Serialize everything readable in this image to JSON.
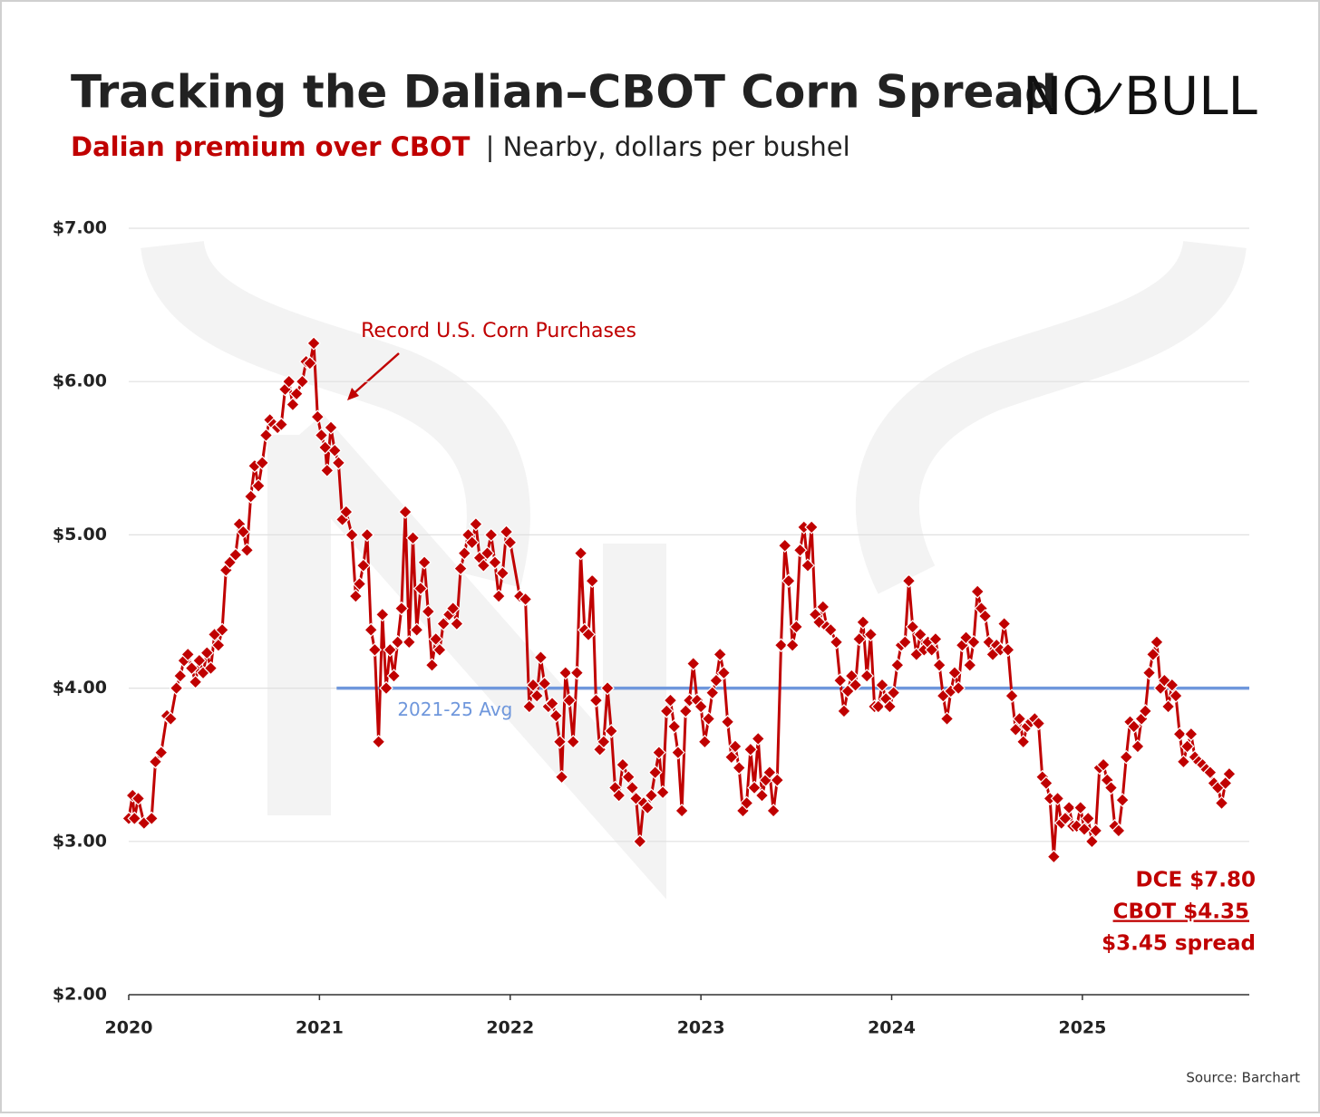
{
  "chart_data": {
    "type": "line",
    "title": "Tracking the Dalian–CBOT Corn Spread",
    "subtitle": {
      "highlight": "Dalian premium over CBOT",
      "rest": "| Nearby, dollars per bushel"
    },
    "logo": [
      "NO",
      "BULL"
    ],
    "source": "Source: Barchart",
    "xlim": [
      2020,
      2025.875
    ],
    "xticks": [
      2020,
      2021,
      2022,
      2023,
      2024,
      2025
    ],
    "ylim": [
      2,
      7
    ],
    "yticks": [
      {
        "value": 2,
        "label": "$2.00"
      },
      {
        "value": 3,
        "label": "$3.00"
      },
      {
        "value": 4,
        "label": "$4.00"
      },
      {
        "value": 5,
        "label": "$5.00"
      },
      {
        "value": 6,
        "label": "$6.00"
      },
      {
        "value": 7,
        "label": "$7.00"
      }
    ],
    "grid": true,
    "series": [
      {
        "name": "Dalian premium over CBOT",
        "color": "#c00000",
        "x": [
          2020.0,
          2020.02,
          2020.03,
          2020.05,
          2020.08,
          2020.12,
          2020.14,
          2020.17,
          2020.2,
          2020.22,
          2020.25,
          2020.27,
          2020.29,
          2020.31,
          2020.33,
          2020.35,
          2020.37,
          2020.39,
          2020.41,
          2020.43,
          2020.45,
          2020.47,
          2020.49,
          2020.51,
          2020.53,
          2020.56,
          2020.58,
          2020.6,
          2020.62,
          2020.64,
          2020.66,
          2020.68,
          2020.7,
          2020.72,
          2020.74,
          2020.76,
          2020.78,
          2020.8,
          2020.82,
          2020.84,
          2020.86,
          2020.88,
          2020.91,
          2020.93,
          2020.95,
          2020.97,
          2020.99,
          2021.01,
          2021.03,
          2021.04,
          2021.06,
          2021.08,
          2021.1,
          2021.12,
          2021.14,
          2021.17,
          2021.19,
          2021.21,
          2021.23,
          2021.25,
          2021.27,
          2021.29,
          2021.31,
          2021.33,
          2021.35,
          2021.37,
          2021.39,
          2021.41,
          2021.43,
          2021.45,
          2021.47,
          2021.49,
          2021.51,
          2021.53,
          2021.55,
          2021.57,
          2021.59,
          2021.61,
          2021.63,
          2021.65,
          2021.68,
          2021.7,
          2021.72,
          2021.74,
          2021.76,
          2021.78,
          2021.8,
          2021.82,
          2021.84,
          2021.86,
          2021.88,
          2021.9,
          2021.92,
          2021.94,
          2021.96,
          2021.98,
          2022.0,
          2022.05,
          2022.08,
          2022.1,
          2022.12,
          2022.14,
          2022.16,
          2022.18,
          2022.2,
          2022.22,
          2022.24,
          2022.26,
          2022.27,
          2022.29,
          2022.31,
          2022.33,
          2022.35,
          2022.37,
          2022.39,
          2022.41,
          2022.43,
          2022.45,
          2022.47,
          2022.49,
          2022.51,
          2022.53,
          2022.55,
          2022.57,
          2022.59,
          2022.62,
          2022.64,
          2022.66,
          2022.68,
          2022.7,
          2022.72,
          2022.74,
          2022.76,
          2022.78,
          2022.8,
          2022.82,
          2022.84,
          2022.86,
          2022.88,
          2022.9,
          2022.92,
          2022.94,
          2022.96,
          2022.98,
          2023.0,
          2023.02,
          2023.04,
          2023.06,
          2023.08,
          2023.1,
          2023.12,
          2023.14,
          2023.16,
          2023.18,
          2023.2,
          2023.22,
          2023.24,
          2023.26,
          2023.28,
          2023.3,
          2023.32,
          2023.34,
          2023.36,
          2023.38,
          2023.4,
          2023.42,
          2023.44,
          2023.46,
          2023.48,
          2023.5,
          2023.52,
          2023.54,
          2023.56,
          2023.58,
          2023.6,
          2023.62,
          2023.64,
          2023.66,
          2023.68,
          2023.71,
          2023.73,
          2023.75,
          2023.77,
          2023.79,
          2023.81,
          2023.83,
          2023.85,
          2023.87,
          2023.89,
          2023.91,
          2023.93,
          2023.95,
          2023.97,
          2023.99,
          2024.01,
          2024.03,
          2024.05,
          2024.07,
          2024.09,
          2024.11,
          2024.13,
          2024.15,
          2024.17,
          2024.19,
          2024.21,
          2024.23,
          2024.25,
          2024.27,
          2024.29,
          2024.31,
          2024.33,
          2024.35,
          2024.37,
          2024.39,
          2024.41,
          2024.43,
          2024.45,
          2024.47,
          2024.49,
          2024.51,
          2024.53,
          2024.55,
          2024.57,
          2024.59,
          2024.61,
          2024.63,
          2024.65,
          2024.67,
          2024.69,
          2024.71,
          2024.73,
          2024.75,
          2024.77,
          2024.79,
          2024.81,
          2024.83,
          2024.85,
          2024.87,
          2024.89,
          2024.91,
          2024.93,
          2024.95,
          2024.97,
          2024.99,
          2025.01,
          2025.03,
          2025.05,
          2025.07,
          2025.09,
          2025.11,
          2025.13,
          2025.15,
          2025.17,
          2025.19,
          2025.21,
          2025.23,
          2025.25,
          2025.27,
          2025.29,
          2025.31,
          2025.33,
          2025.35,
          2025.37,
          2025.39,
          2025.41,
          2025.43,
          2025.45,
          2025.47,
          2025.49,
          2025.51,
          2025.53,
          2025.55,
          2025.57,
          2025.59,
          2025.61,
          2025.63,
          2025.65,
          2025.67,
          2025.69,
          2025.71,
          2025.73,
          2025.75,
          2025.77
        ],
        "values": [
          3.15,
          3.3,
          3.15,
          3.28,
          3.12,
          3.15,
          3.52,
          3.58,
          3.82,
          3.8,
          4.0,
          4.08,
          4.18,
          4.22,
          4.13,
          4.04,
          4.18,
          4.1,
          4.23,
          4.13,
          4.35,
          4.28,
          4.38,
          4.77,
          4.82,
          4.87,
          5.07,
          5.02,
          4.9,
          5.25,
          5.45,
          5.32,
          5.47,
          5.65,
          5.75,
          5.72,
          5.7,
          5.72,
          5.95,
          6.0,
          5.85,
          5.92,
          6.0,
          6.13,
          6.12,
          6.25,
          5.77,
          5.65,
          5.57,
          5.42,
          5.7,
          5.55,
          5.47,
          5.1,
          5.15,
          5.0,
          4.6,
          4.68,
          4.8,
          5.0,
          4.38,
          4.25,
          3.65,
          4.48,
          4.0,
          4.25,
          4.08,
          4.3,
          4.52,
          5.15,
          4.3,
          4.98,
          4.38,
          4.65,
          4.82,
          4.5,
          4.15,
          4.32,
          4.25,
          4.42,
          4.48,
          4.52,
          4.42,
          4.78,
          4.88,
          5.0,
          4.95,
          5.07,
          4.85,
          4.8,
          4.88,
          5.0,
          4.82,
          4.6,
          4.75,
          5.02,
          4.95,
          4.6,
          4.58,
          3.88,
          4.02,
          3.95,
          4.2,
          4.03,
          3.88,
          3.9,
          3.82,
          3.65,
          3.42,
          4.1,
          3.92,
          3.65,
          4.1,
          4.88,
          4.38,
          4.35,
          4.7,
          3.92,
          3.6,
          3.65,
          4.0,
          3.72,
          3.35,
          3.3,
          3.5,
          3.42,
          3.35,
          3.28,
          3.0,
          3.25,
          3.22,
          3.3,
          3.45,
          3.58,
          3.32,
          3.85,
          3.92,
          3.75,
          3.58,
          3.2,
          3.85,
          3.92,
          4.16,
          3.92,
          3.88,
          3.65,
          3.8,
          3.97,
          4.05,
          4.22,
          4.1,
          3.78,
          3.55,
          3.62,
          3.48,
          3.2,
          3.25,
          3.6,
          3.35,
          3.67,
          3.3,
          3.4,
          3.45,
          3.2,
          3.4,
          4.28,
          4.93,
          4.7,
          4.28,
          4.4,
          4.9,
          5.05,
          4.8,
          5.05,
          4.48,
          4.43,
          4.53,
          4.4,
          4.38,
          4.3,
          4.05,
          3.85,
          3.98,
          4.08,
          4.02,
          4.32,
          4.43,
          4.08,
          4.35,
          3.88,
          3.88,
          4.02,
          3.93,
          3.88,
          3.97,
          4.15,
          4.28,
          4.3,
          4.7,
          4.4,
          4.22,
          4.35,
          4.25,
          4.3,
          4.25,
          4.32,
          4.15,
          3.95,
          3.8,
          3.98,
          4.1,
          4.0,
          4.28,
          4.33,
          4.15,
          4.3,
          4.63,
          4.52,
          4.47,
          4.3,
          4.22,
          4.28,
          4.25,
          4.42,
          4.25,
          3.95,
          3.73,
          3.8,
          3.65,
          3.75,
          3.78,
          3.8,
          3.77,
          3.42,
          3.38,
          3.28,
          2.9,
          3.28,
          3.12,
          3.15,
          3.22,
          3.1,
          3.1,
          3.22,
          3.08,
          3.15,
          3.0,
          3.07,
          3.48,
          3.5,
          3.4,
          3.35,
          3.1,
          3.07,
          3.27,
          3.55,
          3.78,
          3.75,
          3.62,
          3.8,
          3.85,
          4.1,
          4.22,
          4.3,
          4.0,
          4.05,
          3.88,
          4.02,
          3.95,
          3.7,
          3.52,
          3.62,
          3.7,
          3.55,
          3.52,
          3.5,
          3.47,
          3.45,
          3.38,
          3.35,
          3.25,
          3.38,
          3.44
        ]
      }
    ],
    "avg_line": {
      "label": "2021-25 Avg",
      "value": 4,
      "x_start": 2021.09,
      "color": "#6f97dc"
    },
    "annotation": "Record U.S. Corn Purchases",
    "callout": [
      "DCE $7.80",
      "CBOT $4.35",
      "$3.45 spread"
    ]
  }
}
